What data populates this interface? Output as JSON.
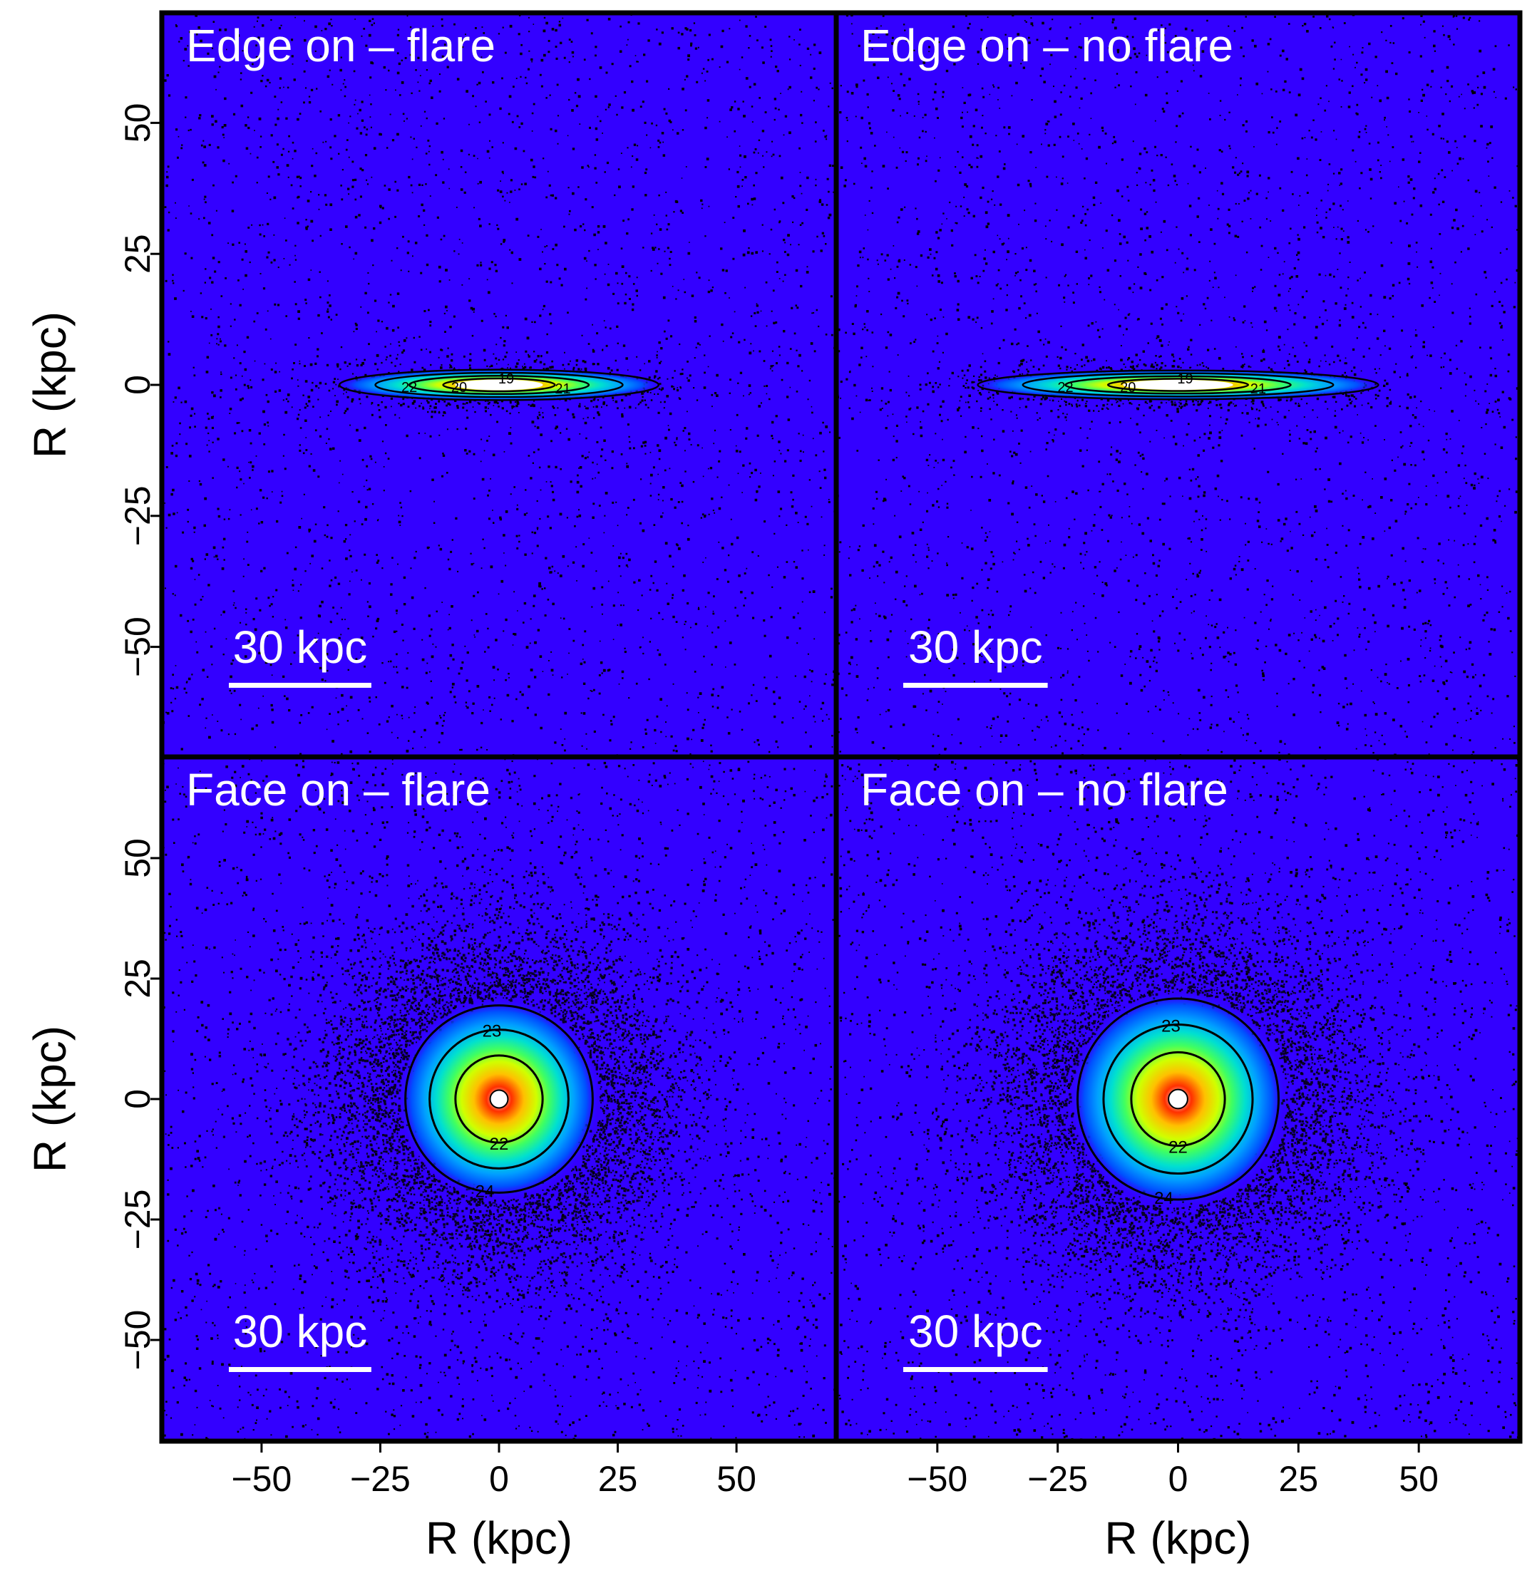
{
  "chart_data": {
    "type": "heatmap",
    "shared_axes": {
      "xlabel": "R (kpc)",
      "ylabel": "R (kpc)",
      "xlim": [
        -71,
        71
      ],
      "ylim": [
        -71,
        71
      ],
      "xticks": [
        -50,
        -25,
        0,
        25,
        50
      ],
      "yticks": [
        -50,
        -25,
        0,
        25,
        50
      ],
      "xtick_labels": [
        "−50",
        "−25",
        "0",
        "25",
        "50"
      ],
      "ytick_labels": [
        "−50",
        "−25",
        "0",
        "25",
        "50"
      ]
    },
    "colors": {
      "background_field": "#3300ff",
      "noise_dots": "#000000",
      "contour_lines": "#000000",
      "colormap": [
        "#3300ff",
        "#0050ff",
        "#00a0ff",
        "#00e0d0",
        "#40ff60",
        "#d0ff00",
        "#ffc000",
        "#ff3000",
        "#ffffff"
      ],
      "annotation_text": "#ffffff"
    },
    "panels": [
      {
        "id": "edge-flare",
        "title": "Edge on – flare",
        "view": "edge",
        "scale_bar": {
          "label": "30 kpc",
          "length_kpc": 30
        },
        "disk_extent_kpc": {
          "major": 42,
          "minor": 3.2
        },
        "contour_labels": [
          "19",
          "20",
          "21",
          "22"
        ]
      },
      {
        "id": "edge-noflare",
        "title": "Edge on – no flare",
        "view": "edge",
        "scale_bar": {
          "label": "30 kpc",
          "length_kpc": 30
        },
        "disk_extent_kpc": {
          "major": 52,
          "minor": 3.0
        },
        "contour_labels": [
          "19",
          "20",
          "21",
          "22"
        ]
      },
      {
        "id": "face-flare",
        "title": "Face on – flare",
        "view": "face",
        "scale_bar": {
          "label": "30 kpc",
          "length_kpc": 30
        },
        "disk_extent_kpc": {
          "radius": 34
        },
        "contour_labels": [
          "22",
          "23",
          "24"
        ]
      },
      {
        "id": "face-noflare",
        "title": "Face on – no flare",
        "view": "face",
        "scale_bar": {
          "label": "30 kpc",
          "length_kpc": 30
        },
        "disk_extent_kpc": {
          "radius": 36
        },
        "contour_labels": [
          "22",
          "23",
          "24"
        ]
      }
    ]
  }
}
